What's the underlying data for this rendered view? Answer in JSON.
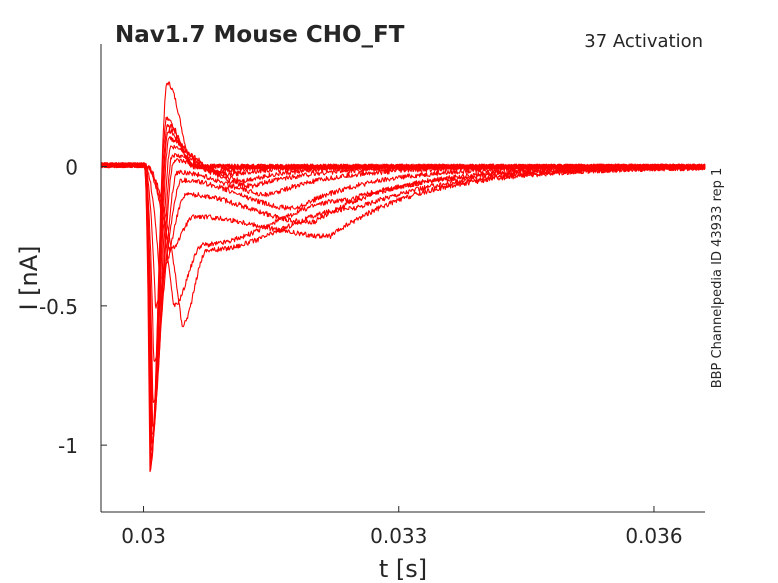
{
  "chart_data": {
    "type": "line",
    "title": "Nav1.7  Mouse  CHO_FT",
    "subtitle": "37  Activation",
    "xlabel": "t [s]",
    "ylabel": "I [nA]",
    "side_label": "BBP Channelpedia ID 43933 rep 1",
    "xlim": [
      0.0295,
      0.0366
    ],
    "ylim": [
      -1.24,
      0.44
    ],
    "xticks": [
      {
        "value": 0.03,
        "label": "0.03"
      },
      {
        "value": 0.033,
        "label": "0.033"
      },
      {
        "value": 0.036,
        "label": "0.036"
      }
    ],
    "yticks": [
      {
        "value": 0,
        "label": "0"
      },
      {
        "value": -0.5,
        "label": "-0.5"
      },
      {
        "value": -1,
        "label": "-1"
      }
    ],
    "grid": false,
    "line_color": "#ff0000",
    "series_params": [
      {
        "peak_t": 0.030075,
        "peak_i": -1.1,
        "rebound_i": 0.3,
        "rebound_t": 0.03028,
        "tail_i": 0.0,
        "tail_t": 0.0306,
        "tail_tau": 0.0003
      },
      {
        "peak_t": 0.03008,
        "peak_i": -1.08,
        "rebound_i": 0.17,
        "rebound_t": 0.03027,
        "tail_i": 0.0,
        "tail_t": 0.0306,
        "tail_tau": 0.0003
      },
      {
        "peak_t": 0.030085,
        "peak_i": -1.05,
        "rebound_i": 0.15,
        "rebound_t": 0.03028,
        "tail_i": 0.0,
        "tail_t": 0.0306,
        "tail_tau": 0.0003
      },
      {
        "peak_t": 0.03009,
        "peak_i": -1.02,
        "rebound_i": 0.13,
        "rebound_t": 0.03029,
        "tail_i": 0.0,
        "tail_t": 0.0306,
        "tail_tau": 0.0003
      },
      {
        "peak_t": 0.030095,
        "peak_i": -1.0,
        "rebound_i": 0.1,
        "rebound_t": 0.0303,
        "tail_i": -0.02,
        "tail_t": 0.0308,
        "tail_tau": 0.0004
      },
      {
        "peak_t": 0.0301,
        "peak_i": -0.97,
        "rebound_i": 0.07,
        "rebound_t": 0.03032,
        "tail_i": -0.03,
        "tail_t": 0.031,
        "tail_tau": 0.0005
      },
      {
        "peak_t": 0.030105,
        "peak_i": -0.93,
        "rebound_i": 0.04,
        "rebound_t": 0.03034,
        "tail_i": -0.05,
        "tail_t": 0.0312,
        "tail_tau": 0.0006
      },
      {
        "peak_t": 0.03011,
        "peak_i": -0.85,
        "rebound_i": 0.02,
        "rebound_t": 0.03036,
        "tail_i": -0.07,
        "tail_t": 0.0313,
        "tail_tau": 0.0007
      },
      {
        "peak_t": 0.03012,
        "peak_i": -0.7,
        "rebound_i": -0.02,
        "rebound_t": 0.0304,
        "tail_i": -0.1,
        "tail_t": 0.0315,
        "tail_tau": 0.0008
      },
      {
        "peak_t": 0.03014,
        "peak_i": -0.5,
        "rebound_i": -0.05,
        "rebound_t": 0.03045,
        "tail_i": -0.15,
        "tail_t": 0.0318,
        "tail_tau": 0.0009
      },
      {
        "peak_t": 0.03019,
        "peak_i": -0.4,
        "rebound_i": -0.1,
        "rebound_t": 0.0305,
        "tail_i": -0.2,
        "tail_t": 0.032,
        "tail_tau": 0.001
      },
      {
        "peak_t": 0.0303,
        "peak_i": -0.3,
        "rebound_i": -0.18,
        "rebound_t": 0.0306,
        "tail_i": -0.25,
        "tail_t": 0.0322,
        "tail_tau": 0.0011
      },
      {
        "peak_t": 0.03045,
        "peak_i": -0.57,
        "rebound_i": -0.3,
        "rebound_t": 0.03075,
        "tail_i": -0.15,
        "tail_t": 0.0325,
        "tail_tau": 0.0012
      },
      {
        "peak_t": 0.03035,
        "peak_i": -0.5,
        "rebound_i": -0.28,
        "rebound_t": 0.0307,
        "tail_i": -0.12,
        "tail_t": 0.0324,
        "tail_tau": 0.0012
      }
    ]
  }
}
